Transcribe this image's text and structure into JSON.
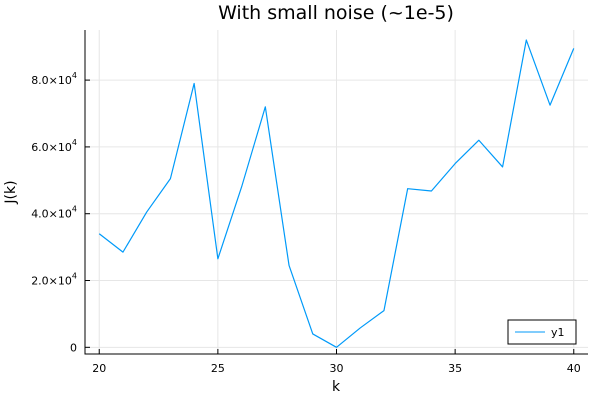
{
  "chart_data": {
    "type": "line",
    "title": "With small noise (~1e-5)",
    "xlabel": "k",
    "ylabel": "J(k)",
    "xlim": [
      19.4,
      40.6
    ],
    "ylim": [
      -2000,
      95000
    ],
    "xticks": [
      20,
      25,
      30,
      35,
      40
    ],
    "yticks": [
      0,
      20000,
      40000,
      60000,
      80000
    ],
    "ytick_mantissas": [
      "0",
      "2.0",
      "4.0",
      "6.0",
      "8.0"
    ],
    "ytick_base": "×10",
    "ytick_exponent": "4",
    "grid": true,
    "legend_position": "bottom-right",
    "series": [
      {
        "name": "y1",
        "color": "#009af9",
        "x": [
          20,
          21,
          22,
          23,
          24,
          25,
          26,
          27,
          28,
          29,
          30,
          31,
          32,
          33,
          34,
          35,
          36,
          37,
          38,
          39,
          40
        ],
        "values": [
          34000,
          28500,
          40500,
          50500,
          79000,
          26500,
          48000,
          72000,
          24500,
          4000,
          0,
          5800,
          11000,
          47500,
          46800,
          55000,
          62000,
          54000,
          92000,
          72500,
          89500
        ]
      }
    ]
  }
}
